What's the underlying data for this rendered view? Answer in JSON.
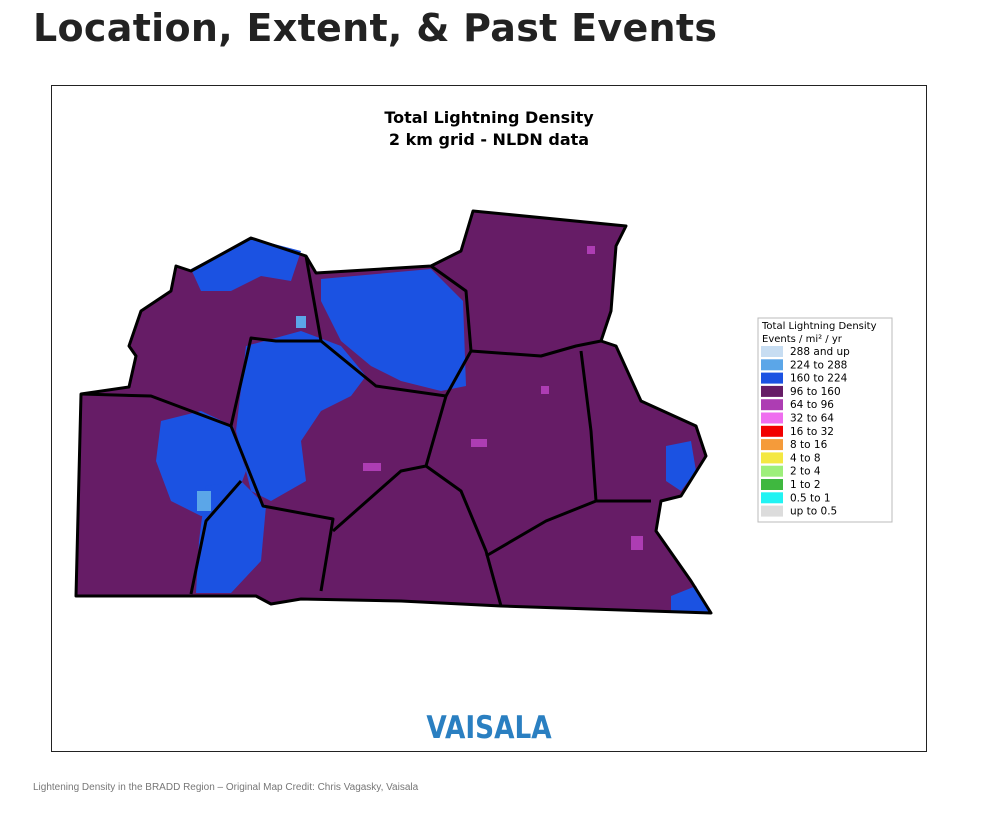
{
  "heading": "Location, Extent, & Past Events",
  "figure": {
    "title": [
      "Total Lightning Density",
      "2 km grid - NLDN data"
    ],
    "legend": {
      "title": [
        "Total Lightning Density",
        "Events / mi² / yr"
      ],
      "items": [
        {
          "label": "288 and up",
          "color": "#c7ddf2"
        },
        {
          "label": "224 to 288",
          "color": "#5ba6e8"
        },
        {
          "label": "160 to 224",
          "color": "#1b52e2"
        },
        {
          "label": "96 to 160",
          "color": "#661c66"
        },
        {
          "label": "64 to 96",
          "color": "#ad3db3"
        },
        {
          "label": "32 to 64",
          "color": "#ef6eef"
        },
        {
          "label": "16 to 32",
          "color": "#f20000"
        },
        {
          "label": "8 to 16",
          "color": "#f59b3a"
        },
        {
          "label": "4 to 8",
          "color": "#f4e842"
        },
        {
          "label": "2 to 4",
          "color": "#9def7b"
        },
        {
          "label": "1 to 2",
          "color": "#3fb83f"
        },
        {
          "label": "0.5 to 1",
          "color": "#21f3f3"
        },
        {
          "label": "up to 0.5",
          "color": "#dcdcdc"
        }
      ]
    },
    "logo": "VAISALA"
  },
  "caption": "Lightening Density in the BRADD Region – Original Map Credit: Chris Vagasky, Vaisala"
}
